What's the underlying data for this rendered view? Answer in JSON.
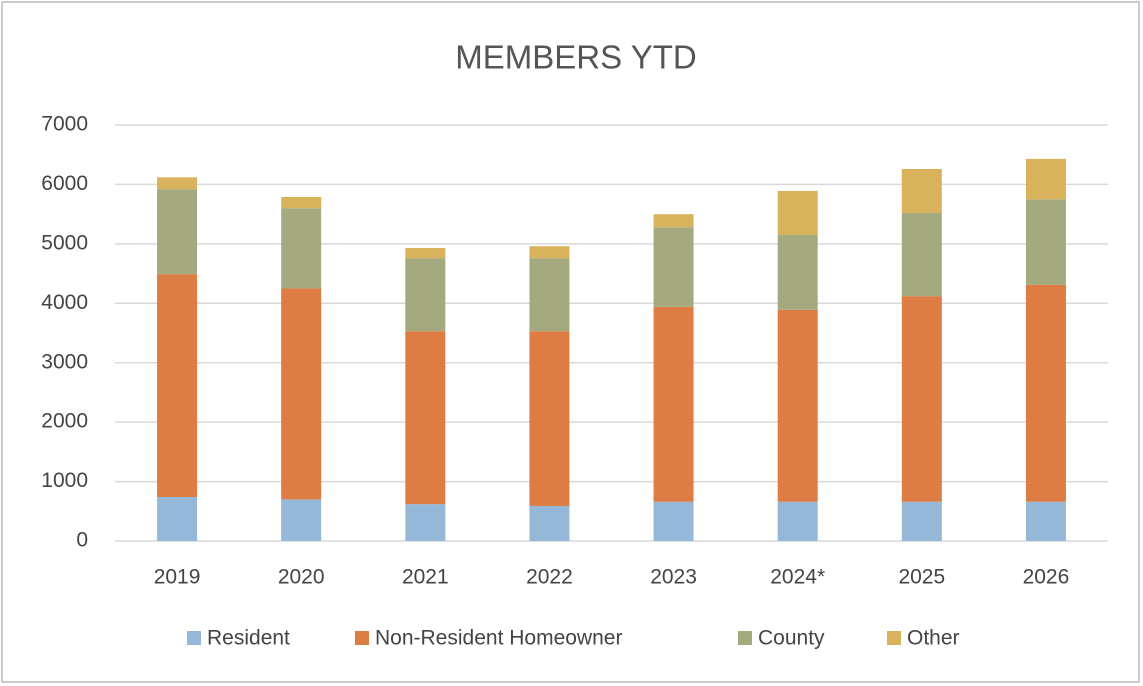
{
  "chart_data": {
    "type": "stacked_bar",
    "title": "MEMBERS YTD",
    "categories": [
      "2019",
      "2020",
      "2021",
      "2022",
      "2023",
      "2024*",
      "2025",
      "2026"
    ],
    "series": [
      {
        "name": "Resident",
        "color": "#95b8d8",
        "values": [
          740,
          700,
          620,
          590,
          660,
          660,
          660,
          660
        ]
      },
      {
        "name": "Non-Resident Homeowner",
        "color": "#dd7c43",
        "values": [
          3750,
          3550,
          2910,
          2940,
          3280,
          3230,
          3460,
          3650
        ]
      },
      {
        "name": "County",
        "color": "#a4aa7e",
        "values": [
          1430,
          1350,
          1230,
          1230,
          1340,
          1260,
          1400,
          1440
        ]
      },
      {
        "name": "Other",
        "color": "#d9b35c",
        "values": [
          200,
          190,
          170,
          200,
          220,
          740,
          740,
          680
        ]
      }
    ],
    "ylim": [
      0,
      7000
    ],
    "yticks": [
      0,
      1000,
      2000,
      3000,
      4000,
      5000,
      6000,
      7000
    ],
    "grid": true,
    "legend": "bottom"
  }
}
